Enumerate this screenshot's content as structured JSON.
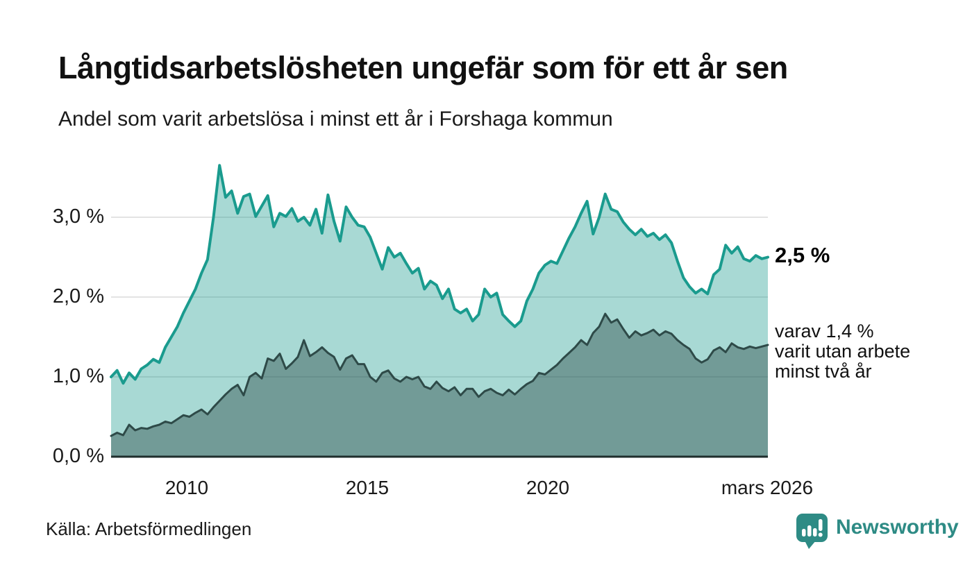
{
  "header": {
    "title": "Långtidsarbetslösheten ungefär som för ett år sen",
    "subtitle": "Andel som varit arbetslösa i minst ett år i Forshaga kommun"
  },
  "chart_data": {
    "type": "area",
    "title": "Långtidsarbetslösheten ungefär som för ett år sen",
    "subtitle": "Andel som varit arbetslösa i minst ett år i Forshaga kommun",
    "x_start_year": 2008.0,
    "x_step_years": 0.1667,
    "x_end_label": "mars 2026",
    "ylim": [
      0,
      3.8
    ],
    "grid": "horizontal",
    "yticks": [
      {
        "value": 0,
        "label": "0,0 %"
      },
      {
        "value": 1,
        "label": "1,0 %"
      },
      {
        "value": 2,
        "label": "2,0 %"
      },
      {
        "value": 3,
        "label": "3,0 %"
      }
    ],
    "xticks": [
      {
        "value": 2010,
        "label": "2010"
      },
      {
        "value": 2015,
        "label": "2015"
      },
      {
        "value": 2020,
        "label": "2020"
      },
      {
        "value": 2026.17,
        "label": "mars 2026"
      }
    ],
    "series": [
      {
        "name": "Arbetslösa minst ett år",
        "line_color": "#1a9b8e",
        "fill_color": "#1a9b8e",
        "fill_opacity": 0.38,
        "line_width": 4,
        "last_value": "2,5 %",
        "values": [
          1.0,
          1.08,
          0.92,
          1.05,
          0.97,
          1.1,
          1.15,
          1.22,
          1.18,
          1.37,
          1.5,
          1.63,
          1.8,
          1.95,
          2.1,
          2.3,
          2.47,
          3.0,
          3.65,
          3.25,
          3.33,
          3.05,
          3.26,
          3.29,
          3.01,
          3.14,
          3.27,
          2.88,
          3.05,
          3.01,
          3.11,
          2.95,
          3.0,
          2.9,
          3.1,
          2.8,
          3.28,
          2.95,
          2.7,
          3.13,
          3.0,
          2.9,
          2.88,
          2.75,
          2.55,
          2.35,
          2.62,
          2.5,
          2.55,
          2.42,
          2.3,
          2.36,
          2.1,
          2.2,
          2.15,
          1.98,
          2.1,
          1.85,
          1.8,
          1.85,
          1.7,
          1.78,
          2.1,
          2.0,
          2.05,
          1.78,
          1.7,
          1.63,
          1.7,
          1.95,
          2.1,
          2.3,
          2.4,
          2.45,
          2.42,
          2.58,
          2.74,
          2.88,
          3.05,
          3.2,
          2.79,
          3.0,
          3.29,
          3.1,
          3.07,
          2.94,
          2.85,
          2.78,
          2.85,
          2.76,
          2.8,
          2.72,
          2.78,
          2.68,
          2.45,
          2.24,
          2.13,
          2.05,
          2.1,
          2.04,
          2.28,
          2.35,
          2.65,
          2.55,
          2.63,
          2.48,
          2.45,
          2.52,
          2.48,
          2.5
        ]
      },
      {
        "name": "Varav arbetslösa minst två år",
        "line_color": "#2e4a48",
        "fill_color": "#2e4a48",
        "fill_opacity": 0.44,
        "line_width": 3,
        "last_value": "1,4 %",
        "values": [
          0.26,
          0.3,
          0.27,
          0.4,
          0.33,
          0.36,
          0.35,
          0.38,
          0.4,
          0.44,
          0.42,
          0.47,
          0.52,
          0.5,
          0.55,
          0.59,
          0.53,
          0.62,
          0.7,
          0.78,
          0.85,
          0.9,
          0.77,
          1.0,
          1.05,
          0.98,
          1.23,
          1.2,
          1.29,
          1.1,
          1.17,
          1.25,
          1.46,
          1.26,
          1.31,
          1.37,
          1.3,
          1.25,
          1.09,
          1.23,
          1.27,
          1.16,
          1.16,
          1.0,
          0.94,
          1.05,
          1.08,
          0.98,
          0.94,
          1.0,
          0.97,
          1.0,
          0.88,
          0.85,
          0.94,
          0.86,
          0.82,
          0.87,
          0.77,
          0.85,
          0.85,
          0.75,
          0.82,
          0.85,
          0.8,
          0.77,
          0.84,
          0.78,
          0.85,
          0.91,
          0.95,
          1.05,
          1.03,
          1.09,
          1.15,
          1.23,
          1.3,
          1.37,
          1.46,
          1.4,
          1.55,
          1.63,
          1.79,
          1.68,
          1.72,
          1.6,
          1.49,
          1.57,
          1.52,
          1.55,
          1.59,
          1.52,
          1.57,
          1.54,
          1.46,
          1.4,
          1.35,
          1.23,
          1.18,
          1.22,
          1.33,
          1.37,
          1.31,
          1.42,
          1.37,
          1.35,
          1.38,
          1.36,
          1.38,
          1.4
        ]
      }
    ],
    "annotations": {
      "primary": "2,5 %",
      "secondary_lines": [
        "varav 1,4 %",
        "varit utan arbete",
        "minst två år"
      ]
    },
    "legend_position": "right-annotations",
    "colors": {
      "gridline": "#e3e3e3",
      "baseline": "#1f2d2c",
      "teal_line": "#1a9b8e",
      "dark_line": "#2e4a48",
      "brand_teal": "#2e8b85"
    }
  },
  "footer": {
    "source": "Källa: Arbetsförmedlingen",
    "brand": "Newsworthy"
  }
}
